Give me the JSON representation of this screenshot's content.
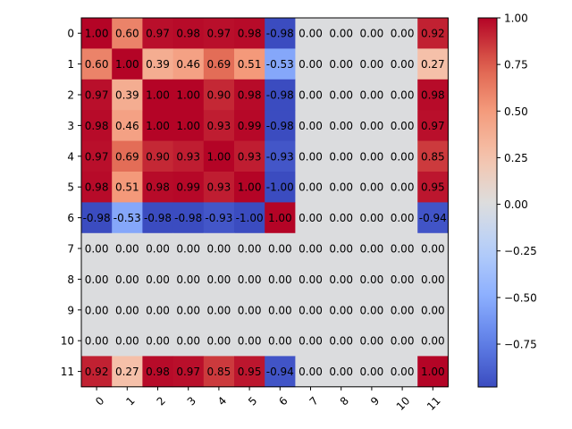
{
  "chart_data": {
    "type": "heatmap",
    "title": "",
    "xlabel": "",
    "ylabel": "",
    "colormap": "coolwarm",
    "x_ticks": [
      "0",
      "1",
      "2",
      "3",
      "4",
      "5",
      "6",
      "7",
      "8",
      "9",
      "10",
      "11"
    ],
    "y_ticks": [
      "0",
      "1",
      "2",
      "3",
      "4",
      "5",
      "6",
      "7",
      "8",
      "9",
      "10",
      "11"
    ],
    "colorbar": {
      "vmin": -0.98,
      "vmax": 1.0,
      "ticks": [
        1.0,
        0.75,
        0.5,
        0.25,
        0.0,
        -0.25,
        -0.5,
        -0.75
      ],
      "tick_labels": [
        "1.00",
        "0.75",
        "0.50",
        "0.25",
        "0.00",
        "−0.25",
        "−0.50",
        "−0.75"
      ]
    },
    "values": [
      [
        1.0,
        0.6,
        0.97,
        0.98,
        0.97,
        0.98,
        -0.98,
        0.0,
        0.0,
        0.0,
        0.0,
        0.92
      ],
      [
        0.6,
        1.0,
        0.39,
        0.46,
        0.69,
        0.51,
        -0.53,
        0.0,
        0.0,
        0.0,
        0.0,
        0.27
      ],
      [
        0.97,
        0.39,
        1.0,
        1.0,
        0.9,
        0.98,
        -0.98,
        0.0,
        0.0,
        0.0,
        0.0,
        0.98
      ],
      [
        0.98,
        0.46,
        1.0,
        1.0,
        0.93,
        0.99,
        -0.98,
        0.0,
        0.0,
        0.0,
        0.0,
        0.97
      ],
      [
        0.97,
        0.69,
        0.9,
        0.93,
        1.0,
        0.93,
        -0.93,
        0.0,
        0.0,
        0.0,
        0.0,
        0.85
      ],
      [
        0.98,
        0.51,
        0.98,
        0.99,
        0.93,
        1.0,
        -1.0,
        0.0,
        0.0,
        0.0,
        0.0,
        0.95
      ],
      [
        -0.98,
        -0.53,
        -0.98,
        -0.98,
        -0.93,
        -1.0,
        1.0,
        0.0,
        0.0,
        0.0,
        0.0,
        -0.94
      ],
      [
        0.0,
        0.0,
        0.0,
        0.0,
        0.0,
        0.0,
        0.0,
        0.0,
        0.0,
        0.0,
        0.0,
        0.0
      ],
      [
        0.0,
        0.0,
        0.0,
        0.0,
        0.0,
        0.0,
        0.0,
        0.0,
        0.0,
        0.0,
        0.0,
        0.0
      ],
      [
        0.0,
        0.0,
        0.0,
        0.0,
        0.0,
        0.0,
        0.0,
        0.0,
        0.0,
        0.0,
        0.0,
        0.0
      ],
      [
        0.0,
        0.0,
        0.0,
        0.0,
        0.0,
        0.0,
        0.0,
        0.0,
        0.0,
        0.0,
        0.0,
        0.0
      ],
      [
        0.92,
        0.27,
        0.98,
        0.97,
        0.85,
        0.95,
        -0.94,
        0.0,
        0.0,
        0.0,
        0.0,
        1.0
      ]
    ]
  }
}
